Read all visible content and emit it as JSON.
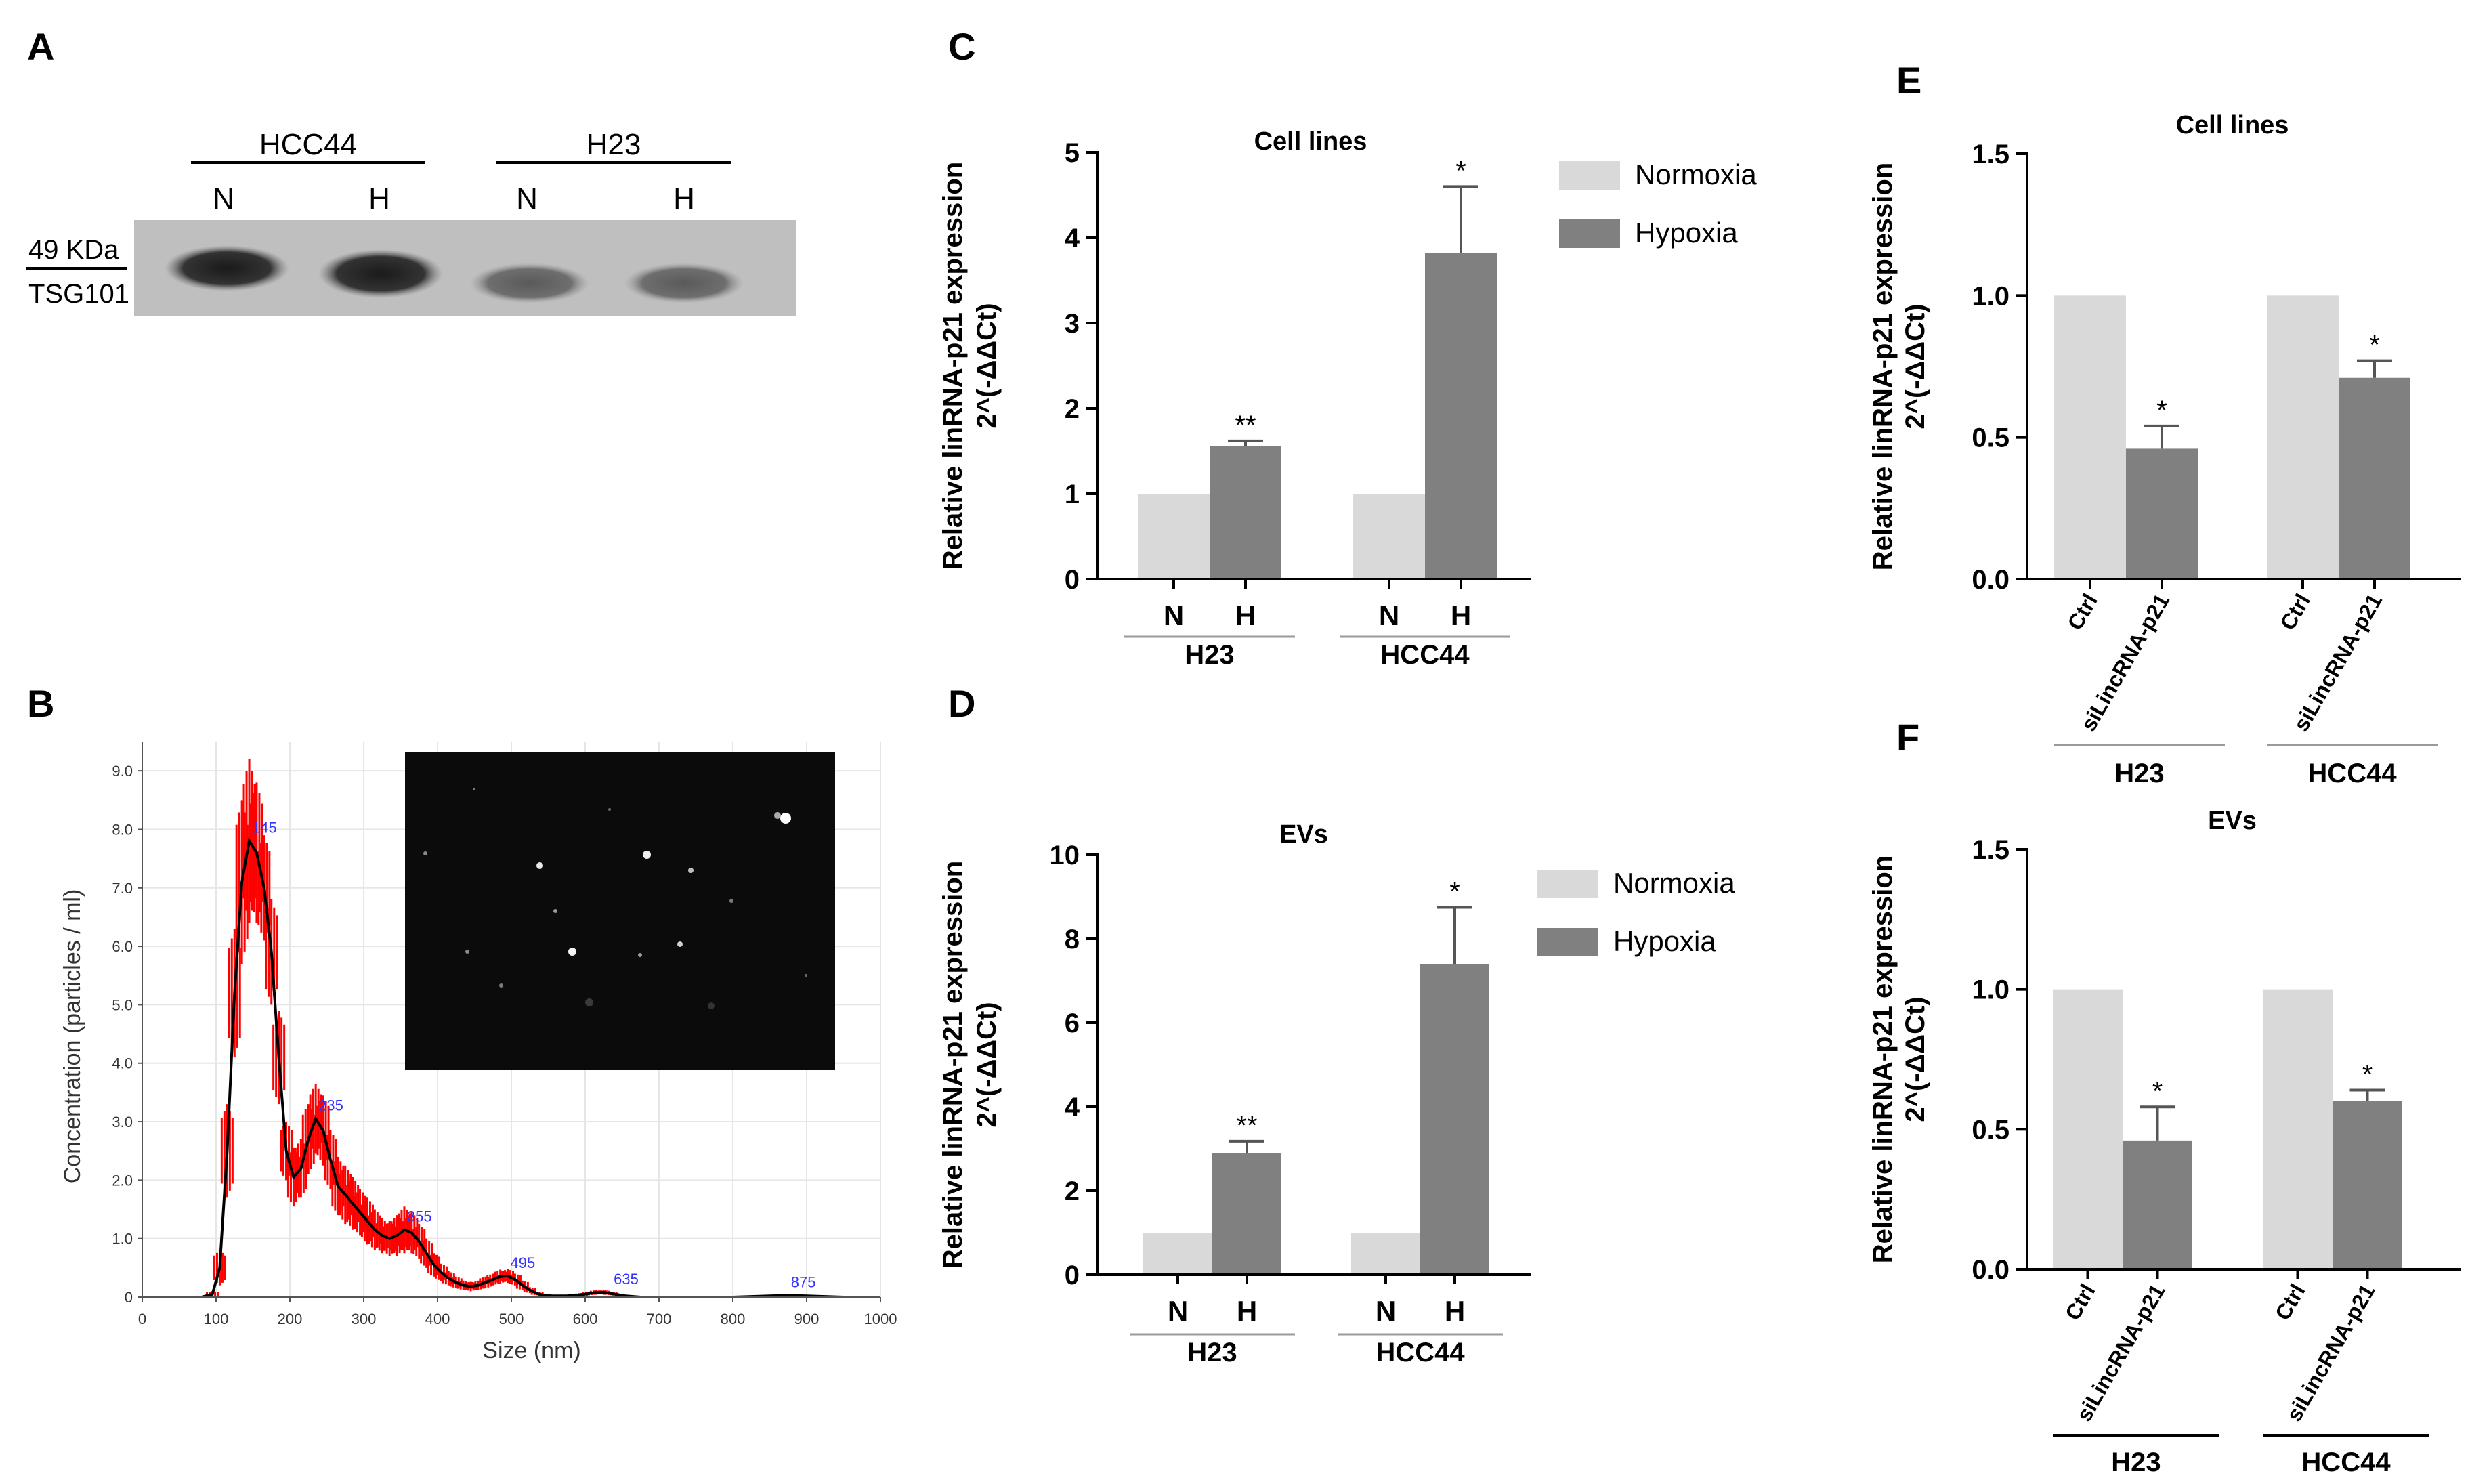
{
  "colors": {
    "normoxia": "#d9d9d9",
    "hypoxia": "#808080",
    "axis": "#000000",
    "nta_line": "#000000",
    "nta_err": "#ff0000",
    "nta_peak": "#3333ff",
    "blot_bg": "#c8c8c8"
  },
  "chart_data": [
    {
      "panel": "A",
      "type": "table",
      "title": "Western blot",
      "groups": [
        "HCC44",
        "H23"
      ],
      "lanes": [
        "N",
        "H",
        "N",
        "H"
      ],
      "marker": "49 KDa",
      "protein": "TSG101"
    },
    {
      "panel": "B",
      "type": "line",
      "xlabel": "Size (nm)",
      "ylabel": "Concentration (particles / ml)",
      "xlim": [
        0,
        1000
      ],
      "ylim": [
        0,
        9.5
      ],
      "xticks": [
        "0",
        "100",
        "200",
        "300",
        "400",
        "500",
        "600",
        "700",
        "800",
        "900",
        "1000"
      ],
      "yticks": [
        "0",
        "1.0",
        "2.0",
        "3.0",
        "4.0",
        "5.0",
        "6.0",
        "7.0",
        "8.0",
        "9.0"
      ],
      "x": [
        0,
        80,
        95,
        105,
        115,
        125,
        135,
        145,
        155,
        165,
        175,
        185,
        195,
        205,
        215,
        225,
        235,
        245,
        255,
        265,
        275,
        285,
        295,
        305,
        315,
        325,
        335,
        345,
        355,
        365,
        375,
        385,
        395,
        405,
        415,
        425,
        435,
        445,
        455,
        465,
        475,
        485,
        495,
        505,
        515,
        525,
        535,
        545,
        555,
        565,
        575,
        585,
        595,
        605,
        615,
        625,
        635,
        645,
        655,
        665,
        675,
        700,
        750,
        800,
        850,
        875,
        900,
        950,
        1000
      ],
      "y": [
        0,
        0,
        0.05,
        0.5,
        2.5,
        5.2,
        7.1,
        7.8,
        7.6,
        7.0,
        5.9,
        4.1,
        2.5,
        2.05,
        2.2,
        2.7,
        3.05,
        2.85,
        2.35,
        1.9,
        1.75,
        1.6,
        1.45,
        1.3,
        1.15,
        1.05,
        1.0,
        1.05,
        1.15,
        1.1,
        0.95,
        0.75,
        0.55,
        0.42,
        0.32,
        0.25,
        0.2,
        0.18,
        0.2,
        0.25,
        0.3,
        0.35,
        0.36,
        0.3,
        0.2,
        0.12,
        0.06,
        0.03,
        0.02,
        0.02,
        0.02,
        0.03,
        0.04,
        0.06,
        0.08,
        0.08,
        0.06,
        0.04,
        0.02,
        0.01,
        0,
        0,
        0,
        0,
        0.02,
        0.03,
        0.02,
        0,
        0
      ],
      "err": [
        0,
        0,
        0.05,
        0.3,
        0.8,
        1.1,
        1.4,
        1.4,
        1.2,
        0.9,
        0.9,
        0.8,
        0.5,
        0.5,
        0.5,
        0.6,
        0.6,
        0.6,
        0.5,
        0.5,
        0.5,
        0.45,
        0.4,
        0.4,
        0.35,
        0.3,
        0.3,
        0.35,
        0.4,
        0.35,
        0.3,
        0.25,
        0.2,
        0.15,
        0.12,
        0.1,
        0.08,
        0.08,
        0.08,
        0.1,
        0.1,
        0.12,
        0.12,
        0.1,
        0.08,
        0.05,
        0.03,
        0.02,
        0.02,
        0.02,
        0.02,
        0.02,
        0.03,
        0.03,
        0.04,
        0.04,
        0.03,
        0.02,
        0.01,
        0.01,
        0,
        0,
        0,
        0,
        0.01,
        0.02,
        0.01,
        0,
        0
      ],
      "peaks": [
        {
          "x": 145,
          "y": 7.8,
          "label": "145"
        },
        {
          "x": 235,
          "y": 3.05,
          "label": "235"
        },
        {
          "x": 355,
          "y": 1.15,
          "label": "355"
        },
        {
          "x": 495,
          "y": 0.36,
          "label": "495"
        },
        {
          "x": 635,
          "y": 0.08,
          "label": "635"
        },
        {
          "x": 875,
          "y": 0.03,
          "label": "875"
        }
      ],
      "inset": "NTA micrograph of particles"
    },
    {
      "panel": "C",
      "type": "bar",
      "title": "Cell lines",
      "ylabel": [
        "Relative linRNA-p21 expression",
        "2^(-ΔΔCt)"
      ],
      "ylim": [
        0,
        5
      ],
      "yticks": [
        "0",
        "1",
        "2",
        "3",
        "4",
        "5"
      ],
      "groups": [
        "H23",
        "HCC44"
      ],
      "categories": [
        "N",
        "H"
      ],
      "series": [
        {
          "name": "Normoxia",
          "values": [
            1,
            1
          ],
          "err": [
            0,
            0
          ],
          "sig": [
            "",
            ""
          ]
        },
        {
          "name": "Hypoxia",
          "values": [
            1.56,
            3.82
          ],
          "err": [
            0.06,
            0.78
          ],
          "sig": [
            "**",
            "*"
          ]
        }
      ],
      "legend": [
        "Normoxia",
        "Hypoxia"
      ]
    },
    {
      "panel": "D",
      "type": "bar",
      "title": "EVs",
      "ylabel": [
        "Relative linRNA-p21 expression",
        "2^(-ΔΔCt)"
      ],
      "ylim": [
        0,
        10
      ],
      "yticks": [
        "0",
        "2",
        "4",
        "6",
        "8",
        "10"
      ],
      "groups": [
        "H23",
        "HCC44"
      ],
      "categories": [
        "N",
        "H"
      ],
      "series": [
        {
          "name": "Normoxia",
          "values": [
            1,
            1
          ],
          "err": [
            0,
            0
          ],
          "sig": [
            "",
            ""
          ]
        },
        {
          "name": "Hypoxia",
          "values": [
            2.9,
            7.4
          ],
          "err": [
            0.28,
            1.35
          ],
          "sig": [
            "**",
            "*"
          ]
        }
      ],
      "legend": [
        "Normoxia",
        "Hypoxia"
      ]
    },
    {
      "panel": "E",
      "type": "bar",
      "title": "Cell lines",
      "ylabel": [
        "Relative linRNA-p21 expression",
        "2^(-ΔΔCt)"
      ],
      "ylim": [
        0,
        1.5
      ],
      "yticks": [
        "0.0",
        "0.5",
        "1.0",
        "1.5"
      ],
      "groups": [
        "H23",
        "HCC44"
      ],
      "categories": [
        "Ctrl",
        "siLincRNA-p21"
      ],
      "series": [
        {
          "name": "Ctrl",
          "values": [
            1.0,
            1.0
          ],
          "err": [
            0,
            0
          ],
          "sig": [
            "",
            ""
          ]
        },
        {
          "name": "siLincRNA-p21",
          "values": [
            0.46,
            0.71
          ],
          "err": [
            0.08,
            0.06
          ],
          "sig": [
            "*",
            "*"
          ]
        }
      ]
    },
    {
      "panel": "F",
      "type": "bar",
      "title": "EVs",
      "ylabel": [
        "Relative linRNA-p21 expression",
        "2^(-ΔΔCt)"
      ],
      "ylim": [
        0,
        1.5
      ],
      "yticks": [
        "0.0",
        "0.5",
        "1.0",
        "1.5"
      ],
      "groups": [
        "H23",
        "HCC44"
      ],
      "categories": [
        "Ctrl",
        "siLincRNA-p21"
      ],
      "series": [
        {
          "name": "Ctrl",
          "values": [
            1.0,
            1.0
          ],
          "err": [
            0,
            0
          ],
          "sig": [
            "",
            ""
          ]
        },
        {
          "name": "siLincRNA-p21",
          "values": [
            0.46,
            0.6
          ],
          "err": [
            0.12,
            0.04
          ],
          "sig": [
            "*",
            "*"
          ]
        }
      ]
    }
  ]
}
